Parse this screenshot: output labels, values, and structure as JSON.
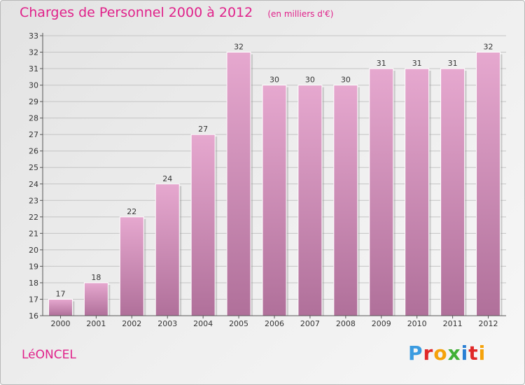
{
  "header": {
    "title": "Charges de Personnel 2000 à 2012",
    "unit": "(en milliers d'€)"
  },
  "footer": {
    "town": "LéONCEL",
    "brand_letters": [
      "P",
      "r",
      "o",
      "x",
      "i",
      "t",
      "i"
    ],
    "brand_colors": [
      "#3b9be0",
      "#e02828",
      "#f5a20a",
      "#3fb035",
      "#2a7fd4",
      "#e02828",
      "#f5a20a"
    ]
  },
  "colors": {
    "title": "#e0218a",
    "bar_top": "#e6a8cf",
    "bar_bottom": "#b0709a"
  },
  "chart_data": {
    "type": "bar",
    "categories": [
      "2000",
      "2001",
      "2002",
      "2003",
      "2004",
      "2005",
      "2006",
      "2007",
      "2008",
      "2009",
      "2010",
      "2011",
      "2012"
    ],
    "values": [
      17,
      18,
      22,
      24,
      27,
      32,
      30,
      30,
      30,
      31,
      31,
      31,
      32
    ],
    "data_labels": [
      "17",
      "18",
      "22",
      "24",
      "27",
      "32",
      "30",
      "30",
      "30",
      "31",
      "31",
      "31",
      "32"
    ],
    "ylim": [
      16,
      33
    ],
    "yticks": [
      "16",
      "17",
      "18",
      "19",
      "20",
      "21",
      "22",
      "23",
      "24",
      "25",
      "26",
      "27",
      "28",
      "29",
      "30",
      "31",
      "32",
      "33"
    ],
    "grid": "horizontal",
    "legend": "none"
  }
}
